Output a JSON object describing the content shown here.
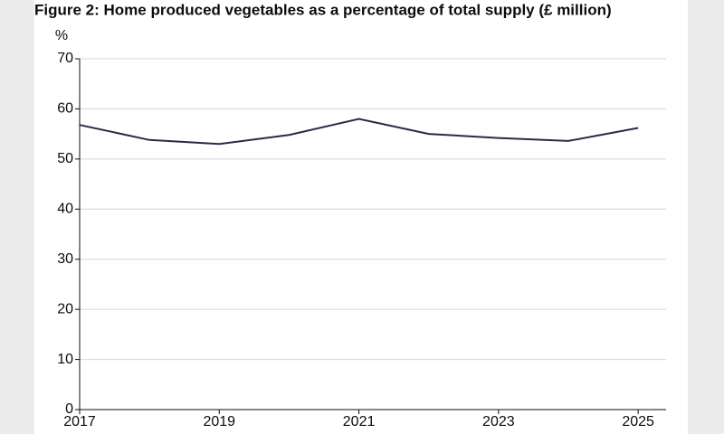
{
  "chart_data": {
    "type": "line",
    "title": "Figure 2: Home produced vegetables as a percentage of total supply (£ million)",
    "y_label": "%",
    "x": [
      2017,
      2018,
      2019,
      2020,
      2021,
      2022,
      2023,
      2024,
      2025
    ],
    "series": [
      {
        "name": "Home produced vegetables",
        "color": "#2a2a47",
        "values": [
          56.8,
          53.8,
          53.0,
          54.8,
          58.0,
          55.0,
          54.2,
          53.6,
          56.2
        ]
      }
    ],
    "xlim": [
      2017,
      2025.4
    ],
    "xticks": [
      2017,
      2019,
      2021,
      2023,
      2025
    ],
    "ylim": [
      0,
      70
    ],
    "yticks": [
      0,
      10,
      20,
      30,
      40,
      50,
      60,
      70
    ],
    "grid": true
  }
}
